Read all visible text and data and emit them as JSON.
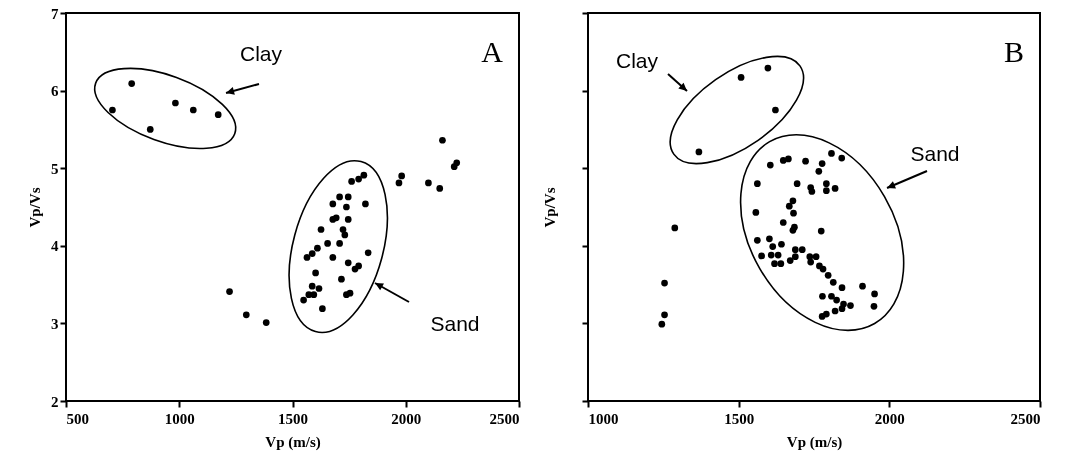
{
  "chart_data": [
    {
      "type": "scatter",
      "xlabel": "Vp (m/s)",
      "ylabel": "Vp/Vs",
      "color": "#000000",
      "marker": "circle",
      "x": [
        705,
        790,
        872,
        983,
        1062,
        1172,
        1222,
        1296,
        1384,
        1970,
        1982,
        2100,
        2150,
        2162,
        2214,
        2225,
        1564,
        1587,
        1610,
        1626,
        1655,
        1678,
        1678,
        1693,
        1708,
        1723,
        1731,
        1746,
        1738,
        1678,
        1708,
        1746,
        1761,
        1792,
        1815,
        1822,
        1834,
        1746,
        1776,
        1792,
        1716,
        1738,
        1754,
        1632,
        1617,
        1602,
        1549,
        1572,
        1587,
        1594
      ],
      "values": [
        5.75,
        6.09,
        5.5,
        5.84,
        5.75,
        5.69,
        3.41,
        3.11,
        3.01,
        4.81,
        4.9,
        4.81,
        4.74,
        5.36,
        5.02,
        5.07,
        3.85,
        3.9,
        3.97,
        4.21,
        4.03,
        3.85,
        4.34,
        4.36,
        4.03,
        4.21,
        4.14,
        4.34,
        4.5,
        4.54,
        4.63,
        4.63,
        4.83,
        4.86,
        4.91,
        4.54,
        3.91,
        3.78,
        3.7,
        3.74,
        3.57,
        3.37,
        3.39,
        3.19,
        3.45,
        3.65,
        3.3,
        3.37,
        3.48,
        3.37
      ],
      "xlim": [
        500,
        2500
      ],
      "xticks": [
        500,
        1000,
        1500,
        2000,
        2500
      ],
      "ylim": [
        2,
        7
      ],
      "yticks": [
        2,
        3,
        4,
        5,
        6,
        7
      ],
      "annotations": [
        "A",
        "Clay",
        "Sand"
      ]
    },
    {
      "type": "scatter",
      "xlabel": "Vp (m/s)",
      "ylabel": "Vp/Vs",
      "color": "#000000",
      "marker": "circle",
      "tick_labels": "x",
      "x": [
        1368,
        1508,
        1597,
        1622,
        1288,
        1254,
        1254,
        1245,
        1562,
        1557,
        1562,
        1576,
        1605,
        1648,
        1665,
        1722,
        1777,
        1766,
        1808,
        1842,
        1694,
        1739,
        1743,
        1791,
        1820,
        1791,
        1680,
        1668,
        1682,
        1648,
        1685,
        1680,
        1774,
        1602,
        1613,
        1642,
        1608,
        1631,
        1619,
        1640,
        1671,
        1688,
        1711,
        1688,
        1736,
        1757,
        1739,
        1768,
        1780,
        1797,
        1814,
        1843,
        1911,
        1951,
        1949,
        1778,
        1808,
        1825,
        1848,
        1871,
        1843,
        1820,
        1791,
        1777
      ],
      "values": [
        5.21,
        6.17,
        6.29,
        5.75,
        4.23,
        3.52,
        3.11,
        2.99,
        4.8,
        4.43,
        4.07,
        3.87,
        5.04,
        5.1,
        5.12,
        5.09,
        5.06,
        4.96,
        5.19,
        5.13,
        4.8,
        4.75,
        4.7,
        4.8,
        4.74,
        4.71,
        4.58,
        4.51,
        4.42,
        4.3,
        4.24,
        4.2,
        4.19,
        4.09,
        3.99,
        4.02,
        3.88,
        3.88,
        3.77,
        3.77,
        3.81,
        3.95,
        3.95,
        3.86,
        3.86,
        3.86,
        3.79,
        3.74,
        3.7,
        3.62,
        3.53,
        3.46,
        3.48,
        3.38,
        3.22,
        3.35,
        3.35,
        3.3,
        3.25,
        3.23,
        3.19,
        3.16,
        3.12,
        3.09
      ],
      "xlim": [
        1000,
        2500
      ],
      "xticks": [
        1000,
        1500,
        2000,
        2500
      ],
      "ylim": [
        2,
        7
      ],
      "yticks": [
        2,
        3,
        4,
        5,
        6,
        7
      ],
      "annotations": [
        "B",
        "Clay",
        "Sand"
      ]
    }
  ]
}
